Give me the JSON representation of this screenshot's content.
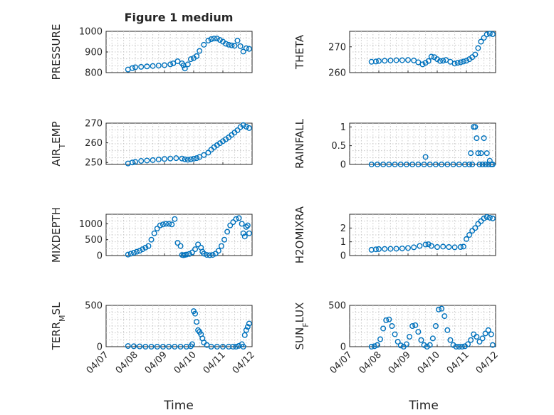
{
  "figure": {
    "title": "Figure 1 medium",
    "xlabel": "Time",
    "x_tick_labels": [
      "04/07",
      "04/08",
      "04/09",
      "04/10",
      "04/11",
      "04/12"
    ],
    "marker_color": "#0072BD"
  },
  "chart_data": [
    {
      "type": "scatter",
      "title": "Figure 1 medium",
      "ylabel": "PRESSURE",
      "xlabel": "",
      "xlim": [
        0,
        5
      ],
      "ylim": [
        800,
        1000
      ],
      "yticks": [
        800,
        900,
        1000
      ],
      "grid": true,
      "x_tick_labels": [
        "04/07",
        "04/08",
        "04/09",
        "04/10",
        "04/11",
        "04/12"
      ],
      "series": [
        {
          "x": [
            0.75,
            0.9,
            1.0,
            1.2,
            1.4,
            1.6,
            1.8,
            2.0,
            2.2,
            2.3,
            2.45,
            2.6,
            2.65,
            2.7,
            2.8,
            2.9,
            3.0,
            3.1,
            3.2,
            3.35,
            3.5,
            3.6,
            3.7,
            3.8,
            3.9,
            4.0,
            4.1,
            4.2,
            4.3,
            4.4,
            4.5,
            4.6,
            4.7,
            4.8,
            4.9
          ],
          "y": [
            815,
            822,
            826,
            828,
            830,
            832,
            834,
            836,
            840,
            845,
            855,
            845,
            835,
            820,
            840,
            865,
            870,
            880,
            905,
            935,
            955,
            962,
            965,
            965,
            958,
            950,
            940,
            935,
            932,
            930,
            955,
            928,
            902,
            918,
            915
          ]
        }
      ]
    },
    {
      "type": "scatter",
      "ylabel": "THETA",
      "xlabel": "",
      "xlim": [
        0,
        5
      ],
      "ylim": [
        260,
        276
      ],
      "yticks": [
        260,
        270
      ],
      "grid": true,
      "x_tick_labels": [
        "04/07",
        "04/08",
        "04/09",
        "04/10",
        "04/11",
        "04/12"
      ],
      "series": [
        {
          "x": [
            0.75,
            0.9,
            1.0,
            1.2,
            1.4,
            1.6,
            1.8,
            2.0,
            2.2,
            2.35,
            2.5,
            2.6,
            2.7,
            2.8,
            2.9,
            3.0,
            3.1,
            3.2,
            3.3,
            3.45,
            3.6,
            3.7,
            3.8,
            3.9,
            4.0,
            4.1,
            4.2,
            4.3,
            4.4,
            4.5,
            4.6,
            4.7,
            4.8,
            4.9
          ],
          "y": [
            264.2,
            264.3,
            264.5,
            264.6,
            264.7,
            264.8,
            264.8,
            264.9,
            264.7,
            264.0,
            263.2,
            263.8,
            264.5,
            266.2,
            266.0,
            265.2,
            264.5,
            264.6,
            264.9,
            264.2,
            263.5,
            263.8,
            264.0,
            264.3,
            264.6,
            265.2,
            266.0,
            267.0,
            269.5,
            272.0,
            273.5,
            274.8,
            275.1,
            274.9
          ]
        }
      ]
    },
    {
      "type": "scatter",
      "ylabel": "AIR_TEMP",
      "ylabel_main": "AIR",
      "ylabel_sub": "T",
      "ylabel_rest": "EMP",
      "xlabel": "",
      "xlim": [
        0,
        5
      ],
      "ylim": [
        249,
        270
      ],
      "yticks": [
        250,
        260,
        270
      ],
      "grid": true,
      "x_tick_labels": [
        "04/07",
        "04/08",
        "04/09",
        "04/10",
        "04/11",
        "04/12"
      ],
      "series": [
        {
          "x": [
            0.75,
            0.9,
            1.0,
            1.2,
            1.4,
            1.6,
            1.8,
            2.0,
            2.2,
            2.4,
            2.6,
            2.7,
            2.8,
            2.9,
            3.0,
            3.1,
            3.2,
            3.35,
            3.5,
            3.6,
            3.7,
            3.8,
            3.9,
            4.0,
            4.1,
            4.2,
            4.3,
            4.4,
            4.5,
            4.6,
            4.7,
            4.8,
            4.9
          ],
          "y": [
            249.5,
            250.0,
            250.3,
            250.8,
            251.0,
            251.2,
            251.5,
            251.8,
            252.0,
            252.2,
            252.0,
            251.6,
            251.4,
            251.6,
            251.9,
            252.2,
            252.8,
            253.8,
            255.0,
            256.5,
            257.8,
            258.8,
            259.8,
            260.8,
            261.8,
            262.8,
            264.0,
            265.2,
            266.4,
            268.0,
            269.0,
            268.2,
            267.5
          ]
        }
      ]
    },
    {
      "type": "scatter",
      "ylabel": "RAINFALL",
      "xlabel": "",
      "xlim": [
        0,
        5
      ],
      "ylim": [
        0,
        1.1
      ],
      "yticks": [
        0,
        0.5,
        1
      ],
      "ytick_labels": [
        "0",
        "0.5",
        "1"
      ],
      "grid": true,
      "x_tick_labels": [
        "04/07",
        "04/08",
        "04/09",
        "04/10",
        "04/11",
        "04/12"
      ],
      "series": [
        {
          "x": [
            0.75,
            0.95,
            1.15,
            1.35,
            1.55,
            1.75,
            1.95,
            2.15,
            2.35,
            2.55,
            2.6,
            2.75,
            2.95,
            3.15,
            3.35,
            3.55,
            3.75,
            3.95,
            4.1,
            4.15,
            4.2,
            4.25,
            4.3,
            4.35,
            4.4,
            4.45,
            4.5,
            4.55,
            4.6,
            4.65,
            4.7,
            4.75,
            4.8,
            4.85,
            4.9
          ],
          "y": [
            0,
            0,
            0,
            0,
            0,
            0,
            0,
            0,
            0,
            0,
            0.2,
            0,
            0,
            0,
            0,
            0,
            0,
            0,
            0,
            0.3,
            0,
            1.0,
            1.0,
            0.7,
            0.3,
            0,
            0.3,
            0,
            0.7,
            0,
            0.3,
            0,
            0.1,
            0,
            0
          ]
        }
      ]
    },
    {
      "type": "scatter",
      "ylabel": "MIXDEPTH",
      "xlabel": "",
      "xlim": [
        0,
        5
      ],
      "ylim": [
        0,
        1300
      ],
      "yticks": [
        0,
        500,
        1000
      ],
      "grid": true,
      "x_tick_labels": [
        "04/07",
        "04/08",
        "04/09",
        "04/10",
        "04/11",
        "04/12"
      ],
      "series": [
        {
          "x": [
            0.75,
            0.85,
            0.95,
            1.05,
            1.15,
            1.25,
            1.35,
            1.45,
            1.55,
            1.65,
            1.75,
            1.85,
            1.95,
            2.05,
            2.15,
            2.25,
            2.35,
            2.45,
            2.55,
            2.6,
            2.65,
            2.7,
            2.75,
            2.85,
            2.95,
            3.05,
            3.15,
            3.25,
            3.3,
            3.35,
            3.45,
            3.55,
            3.65,
            3.75,
            3.85,
            3.95,
            4.05,
            4.15,
            4.25,
            4.35,
            4.45,
            4.55,
            4.65,
            4.7,
            4.75,
            4.8,
            4.85,
            4.9
          ],
          "y": [
            30,
            60,
            90,
            120,
            150,
            200,
            250,
            300,
            500,
            700,
            850,
            950,
            980,
            1000,
            1000,
            980,
            1150,
            400,
            300,
            20,
            10,
            20,
            30,
            50,
            100,
            200,
            350,
            250,
            120,
            60,
            20,
            10,
            20,
            60,
            150,
            300,
            500,
            750,
            950,
            1050,
            1150,
            1180,
            1000,
            700,
            600,
            900,
            950,
            700
          ]
        }
      ]
    },
    {
      "type": "scatter",
      "ylabel": "H2OMIXRA",
      "xlabel": "",
      "xlim": [
        0,
        5
      ],
      "ylim": [
        0,
        3
      ],
      "yticks": [
        0,
        1,
        2
      ],
      "grid": true,
      "x_tick_labels": [
        "04/07",
        "04/08",
        "04/09",
        "04/10",
        "04/11",
        "04/12"
      ],
      "series": [
        {
          "x": [
            0.75,
            0.9,
            1.0,
            1.2,
            1.4,
            1.6,
            1.8,
            2.0,
            2.2,
            2.4,
            2.6,
            2.7,
            2.8,
            3.0,
            3.2,
            3.4,
            3.6,
            3.8,
            3.9,
            4.0,
            4.1,
            4.2,
            4.3,
            4.4,
            4.5,
            4.6,
            4.7,
            4.8,
            4.9
          ],
          "y": [
            0.42,
            0.45,
            0.47,
            0.48,
            0.49,
            0.5,
            0.52,
            0.55,
            0.6,
            0.7,
            0.8,
            0.82,
            0.7,
            0.62,
            0.65,
            0.62,
            0.6,
            0.62,
            0.65,
            1.2,
            1.5,
            1.8,
            2.0,
            2.3,
            2.5,
            2.7,
            2.8,
            2.75,
            2.7
          ]
        }
      ]
    },
    {
      "type": "scatter",
      "ylabel": "TERR_MSL",
      "ylabel_main": "TERR",
      "ylabel_sub": "M",
      "ylabel_rest": "SL",
      "xlabel": "Time",
      "xlim": [
        0,
        5
      ],
      "ylim": [
        0,
        500
      ],
      "yticks": [
        0,
        500
      ],
      "grid": true,
      "x_tick_labels": [
        "04/07",
        "04/08",
        "04/09",
        "04/10",
        "04/11",
        "04/12"
      ],
      "series": [
        {
          "x": [
            0.75,
            0.95,
            1.15,
            1.35,
            1.55,
            1.75,
            1.95,
            2.15,
            2.35,
            2.55,
            2.75,
            2.9,
            2.95,
            3.0,
            3.05,
            3.1,
            3.15,
            3.2,
            3.25,
            3.3,
            3.35,
            3.45,
            3.6,
            3.8,
            4.0,
            4.2,
            4.35,
            4.45,
            4.55,
            4.65,
            4.7,
            4.75,
            4.8,
            4.85,
            4.9
          ],
          "y": [
            8,
            5,
            3,
            0,
            0,
            0,
            0,
            0,
            0,
            0,
            0,
            5,
            30,
            430,
            400,
            300,
            200,
            180,
            150,
            100,
            50,
            20,
            0,
            0,
            0,
            0,
            0,
            0,
            10,
            30,
            0,
            140,
            200,
            240,
            280
          ]
        }
      ]
    },
    {
      "type": "scatter",
      "ylabel": "SUN_FLUX",
      "ylabel_main": "SUN",
      "ylabel_sub": "F",
      "ylabel_rest": "LUX",
      "xlabel": "Time",
      "xlim": [
        0,
        5
      ],
      "ylim": [
        0,
        500
      ],
      "yticks": [
        0,
        500
      ],
      "grid": true,
      "x_tick_labels": [
        "04/07",
        "04/08",
        "04/09",
        "04/10",
        "04/11",
        "04/12"
      ],
      "series": [
        {
          "x": [
            0.75,
            0.85,
            0.95,
            1.05,
            1.15,
            1.25,
            1.35,
            1.45,
            1.55,
            1.65,
            1.75,
            1.85,
            1.95,
            2.05,
            2.15,
            2.25,
            2.35,
            2.45,
            2.55,
            2.65,
            2.75,
            2.85,
            2.95,
            3.05,
            3.15,
            3.25,
            3.35,
            3.45,
            3.55,
            3.65,
            3.75,
            3.85,
            3.95,
            4.05,
            4.15,
            4.25,
            4.35,
            4.45,
            4.55,
            4.65,
            4.75,
            4.85,
            4.9
          ],
          "y": [
            0,
            5,
            20,
            90,
            220,
            320,
            330,
            250,
            150,
            60,
            15,
            0,
            30,
            120,
            250,
            260,
            180,
            80,
            20,
            0,
            20,
            100,
            250,
            450,
            460,
            370,
            200,
            80,
            20,
            0,
            0,
            0,
            5,
            30,
            80,
            150,
            120,
            60,
            100,
            160,
            200,
            150,
            20
          ]
        }
      ]
    }
  ]
}
